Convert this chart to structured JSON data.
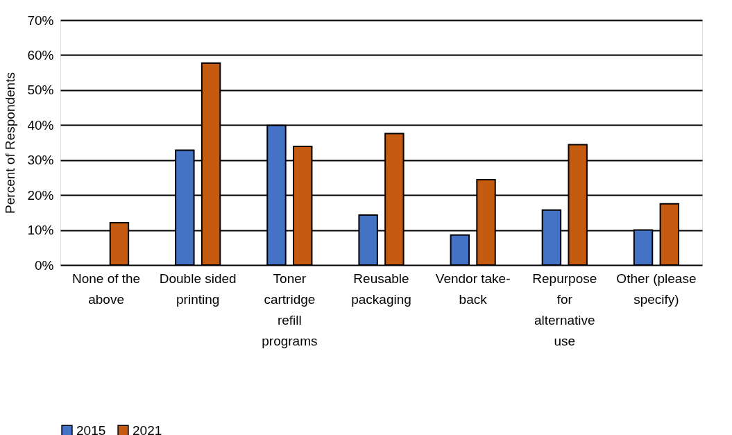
{
  "chart_data": {
    "type": "bar",
    "ylabel": "Percent of Respondents",
    "categories": [
      "None of the above",
      "Double sided printing",
      "Toner cartridge refill programs",
      "Reusable packaging",
      "Vendor take-back",
      "Repurpose for alternative use",
      "Other (please specify)"
    ],
    "series": [
      {
        "name": "2015",
        "color": "#4472c4",
        "values": [
          null,
          32.8,
          39.9,
          14.3,
          8.6,
          15.7,
          10.0
        ]
      },
      {
        "name": "2021",
        "color": "#c55a11",
        "values": [
          12.1,
          57.7,
          33.9,
          37.6,
          24.4,
          34.4,
          17.5
        ]
      }
    ],
    "ylim": [
      0,
      70
    ],
    "yticks": [
      {
        "value": 0,
        "label": "0%"
      },
      {
        "value": 10,
        "label": "10%"
      },
      {
        "value": 20,
        "label": "20%"
      },
      {
        "value": 30,
        "label": "30%"
      },
      {
        "value": 40,
        "label": "40%"
      },
      {
        "value": 50,
        "label": "50%"
      },
      {
        "value": 60,
        "label": "60%"
      },
      {
        "value": 70,
        "label": "70%"
      }
    ],
    "grid": "y",
    "legend": "bottom"
  }
}
